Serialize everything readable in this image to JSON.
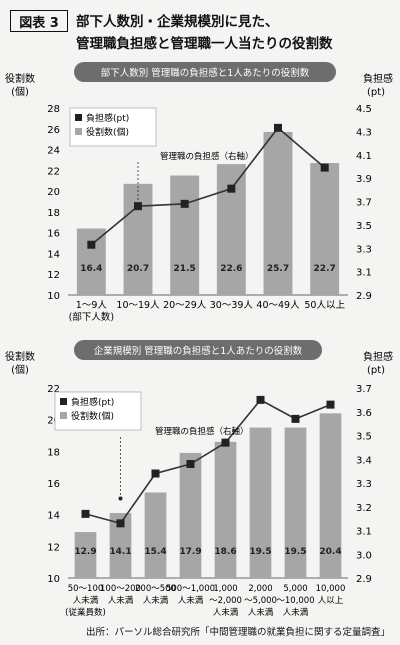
{
  "figure": {
    "badge": "図表 3",
    "title_line1": "部下人数別・企業規模別に見た、",
    "title_line2": "管理職負担感と管理職一人当たりの役割数"
  },
  "source": "出所：パーソル総合研究所「中間管理職の就業負担に関する定量調査」",
  "colors": {
    "bar": "#a6a6a6",
    "line": "#333333",
    "banner": "#6d6d6d"
  },
  "chart_data": [
    {
      "type": "bar+line",
      "title": "部下人数別 管理職の負担感と1人あたりの役割数",
      "left_axis_label": [
        "役割数",
        "(個)"
      ],
      "right_axis_label": [
        "負担感",
        "(pt)"
      ],
      "categories": [
        [
          "1～9人",
          "(部下人数)"
        ],
        [
          "10～19人"
        ],
        [
          "20～29人"
        ],
        [
          "30～39人"
        ],
        [
          "40～49人"
        ],
        [
          "50人以上"
        ]
      ],
      "left_ylim": [
        10,
        28
      ],
      "left_ticks": [
        10,
        12,
        14,
        16,
        18,
        20,
        22,
        24,
        26,
        28
      ],
      "right_ylim": [
        2.9,
        4.5
      ],
      "right_ticks": [
        "2.9",
        "3.1",
        "3.3",
        "3.5",
        "3.7",
        "3.9",
        "4.1",
        "4.3",
        "4.5"
      ],
      "series": [
        {
          "name": "役割数(個)",
          "type": "bar",
          "values": [
            16.4,
            20.7,
            21.5,
            22.6,
            25.7,
            22.7
          ],
          "labels": [
            "16.4",
            "20.7",
            "21.5",
            "22.6",
            "25.7",
            "22.7"
          ]
        },
        {
          "name": "負担感(pt)",
          "type": "line",
          "values": [
            3.33,
            3.66,
            3.68,
            3.81,
            4.33,
            3.99
          ]
        }
      ],
      "annotation": "管理職の負担感（右軸）"
    },
    {
      "type": "bar+line",
      "title": "企業規模別 管理職の負担感と1人あたりの役割数",
      "left_axis_label": [
        "役割数",
        "(個)"
      ],
      "right_axis_label": [
        "負担感",
        "(pt)"
      ],
      "categories": [
        [
          "50～100",
          "人未満",
          "(従業員数)"
        ],
        [
          "100～200",
          "人未満"
        ],
        [
          "200～500",
          "人未満"
        ],
        [
          "500～1,000",
          "人未満"
        ],
        [
          "1,000",
          "～2,000",
          "人未満"
        ],
        [
          "2,000",
          "～5,000",
          "人未満"
        ],
        [
          "5,000",
          "～10,000",
          "人未満"
        ],
        [
          "10,000",
          "人以上"
        ]
      ],
      "left_ylim": [
        10,
        22
      ],
      "left_ticks": [
        10,
        12,
        14,
        16,
        18,
        20,
        22
      ],
      "right_ylim": [
        2.9,
        3.7
      ],
      "right_ticks": [
        "2.9",
        "3.0",
        "3.1",
        "3.2",
        "3.3",
        "3.4",
        "3.5",
        "3.6",
        "3.7"
      ],
      "series": [
        {
          "name": "役割数(個)",
          "type": "bar",
          "values": [
            12.9,
            14.1,
            15.4,
            17.9,
            18.6,
            19.5,
            19.5,
            20.4
          ],
          "labels": [
            "12.9",
            "14.1",
            "15.4",
            "17.9",
            "18.6",
            "19.5",
            "19.5",
            "20.4"
          ]
        },
        {
          "name": "負担感(pt)",
          "type": "line",
          "values": [
            3.17,
            3.13,
            3.34,
            3.38,
            3.47,
            3.65,
            3.57,
            3.63
          ]
        }
      ],
      "annotation": "管理職の負担感（右軸）"
    }
  ]
}
